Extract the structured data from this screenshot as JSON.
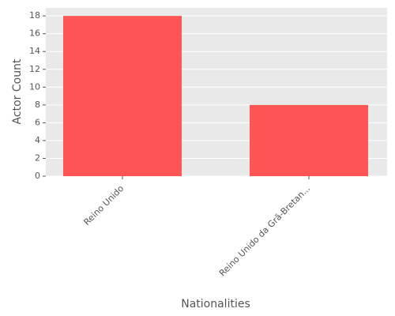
{
  "chart_data": {
    "type": "bar",
    "x_label": "Nationalities",
    "y_label": "Actor Count",
    "categories": [
      "Reino Unido",
      "Reino Unido da Grã-Bretan..."
    ],
    "values": [
      18,
      8
    ],
    "color": "#ff5555",
    "ylim": [
      0,
      18.9
    ],
    "yticks": [
      0,
      2,
      4,
      6,
      8,
      10,
      12,
      14,
      16,
      18
    ],
    "grid": true
  }
}
